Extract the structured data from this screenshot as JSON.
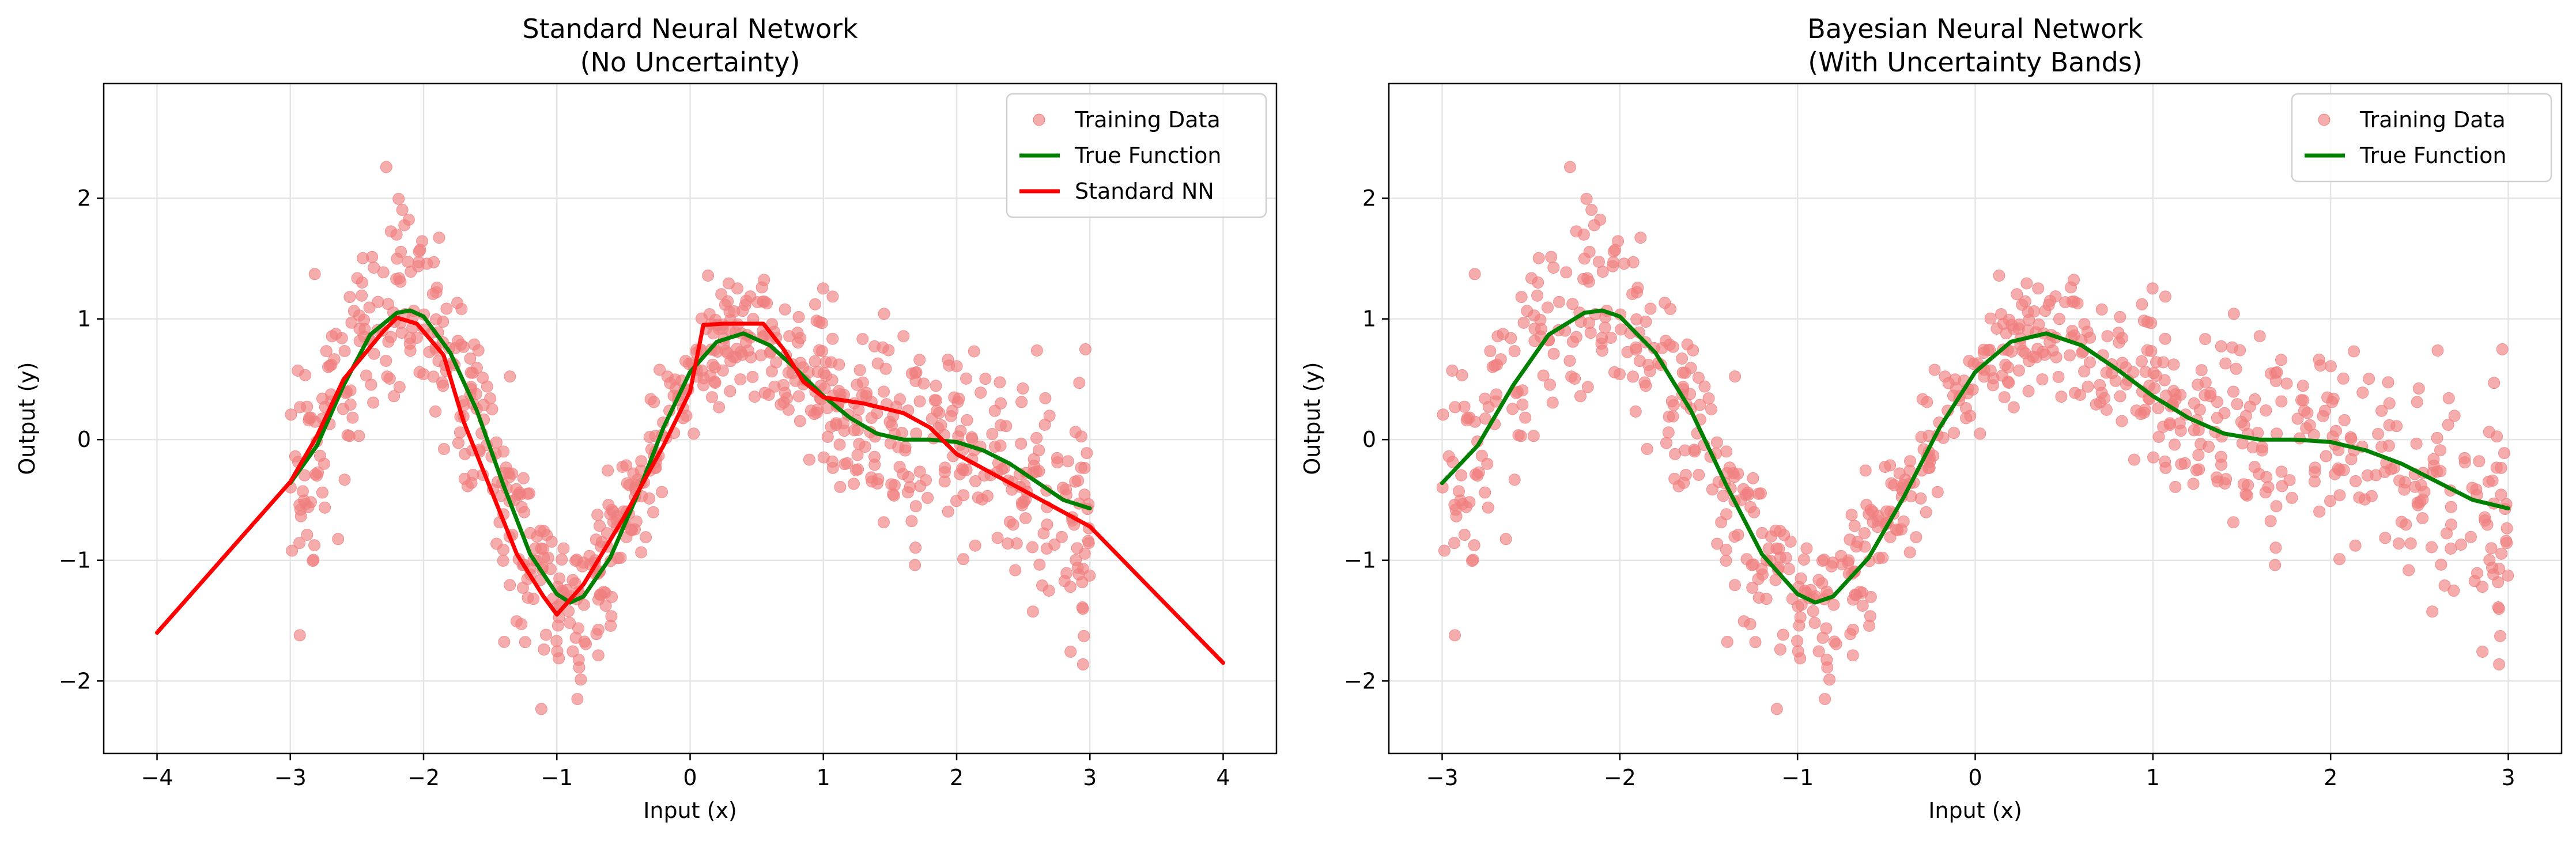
{
  "colors": {
    "training_data": "#f08080",
    "true_function": "#008000",
    "standard_nn": "#ff0000",
    "grid": "#e5e5e5"
  },
  "chart_data": [
    {
      "type": "scatter",
      "title": "Standard Neural Network",
      "subtitle": "(No Uncertainty)",
      "xlabel": "Input (x)",
      "ylabel": "Output (y)",
      "xlim": [
        -4.4,
        4.4
      ],
      "ylim": [
        -2.6,
        2.95
      ],
      "xticks": [
        -4,
        -3,
        -2,
        -1,
        0,
        1,
        2,
        3,
        4
      ],
      "yticks": [
        -2,
        -1,
        0,
        1,
        2
      ],
      "grid": true,
      "legend_position": "top-right",
      "legend": [
        "Training Data",
        "True Function",
        "Standard NN"
      ],
      "series": [
        {
          "name": "Training Data",
          "kind": "scatter",
          "x_range": [
            -3,
            3
          ],
          "points": 800
        },
        {
          "name": "True Function",
          "kind": "line",
          "x": [
            -3,
            -2.8,
            -2.6,
            -2.4,
            -2.2,
            -2.1,
            -2.0,
            -1.8,
            -1.6,
            -1.4,
            -1.2,
            -1.0,
            -0.9,
            -0.8,
            -0.6,
            -0.4,
            -0.2,
            0,
            0.2,
            0.4,
            0.6,
            0.8,
            1.0,
            1.2,
            1.4,
            1.6,
            1.8,
            2.0,
            2.2,
            2.4,
            2.6,
            2.8,
            3.0
          ],
          "y": [
            -0.36,
            -0.05,
            0.45,
            0.87,
            1.05,
            1.07,
            1.02,
            0.72,
            0.24,
            -0.38,
            -0.95,
            -1.28,
            -1.35,
            -1.3,
            -0.98,
            -0.47,
            0.1,
            0.56,
            0.81,
            0.88,
            0.78,
            0.58,
            0.36,
            0.18,
            0.05,
            0.0,
            0.0,
            -0.02,
            -0.09,
            -0.2,
            -0.35,
            -0.5,
            -0.57
          ]
        },
        {
          "name": "Standard NN",
          "kind": "line",
          "x": [
            -4,
            -3,
            -2.8,
            -2.6,
            -2.3,
            -2.2,
            -2.05,
            -1.85,
            -1.7,
            -1.5,
            -1.3,
            -1.1,
            -1.0,
            -0.8,
            -0.5,
            -0.2,
            0,
            0.1,
            0.25,
            0.55,
            0.7,
            0.85,
            1.0,
            1.3,
            1.6,
            1.8,
            2.0,
            2.5,
            3.0,
            4.0
          ],
          "y": [
            -1.6,
            -0.35,
            0.03,
            0.5,
            0.9,
            1.01,
            0.96,
            0.7,
            0.15,
            -0.4,
            -0.95,
            -1.3,
            -1.45,
            -1.2,
            -0.65,
            -0.05,
            0.4,
            0.95,
            0.96,
            0.96,
            0.75,
            0.48,
            0.35,
            0.3,
            0.22,
            0.1,
            -0.12,
            -0.42,
            -0.72,
            -1.85
          ]
        }
      ]
    },
    {
      "type": "scatter",
      "title": "Bayesian Neural Network",
      "subtitle": "(With Uncertainty Bands)",
      "xlabel": "Input (x)",
      "ylabel": "Output (y)",
      "xlim": [
        -3.3,
        3.3
      ],
      "ylim": [
        -2.6,
        2.95
      ],
      "xticks": [
        -3,
        -2,
        -1,
        0,
        1,
        2,
        3
      ],
      "yticks": [
        -2,
        -1,
        0,
        1,
        2
      ],
      "grid": true,
      "legend_position": "top-right",
      "legend": [
        "Training Data",
        "True Function"
      ],
      "series": [
        {
          "name": "Training Data",
          "kind": "scatter",
          "x_range": [
            -3,
            3
          ],
          "points": 800
        },
        {
          "name": "True Function",
          "kind": "line",
          "x": [
            -3,
            -2.8,
            -2.6,
            -2.4,
            -2.2,
            -2.1,
            -2.0,
            -1.8,
            -1.6,
            -1.4,
            -1.2,
            -1.0,
            -0.9,
            -0.8,
            -0.6,
            -0.4,
            -0.2,
            0,
            0.2,
            0.4,
            0.6,
            0.8,
            1.0,
            1.2,
            1.4,
            1.6,
            1.8,
            2.0,
            2.2,
            2.4,
            2.6,
            2.8,
            3.0
          ],
          "y": [
            -0.36,
            -0.05,
            0.45,
            0.87,
            1.05,
            1.07,
            1.02,
            0.72,
            0.24,
            -0.38,
            -0.95,
            -1.28,
            -1.35,
            -1.3,
            -0.98,
            -0.47,
            0.1,
            0.56,
            0.81,
            0.88,
            0.78,
            0.58,
            0.36,
            0.18,
            0.05,
            0.0,
            0.0,
            -0.02,
            -0.09,
            -0.2,
            -0.35,
            -0.5,
            -0.57
          ]
        }
      ]
    }
  ]
}
